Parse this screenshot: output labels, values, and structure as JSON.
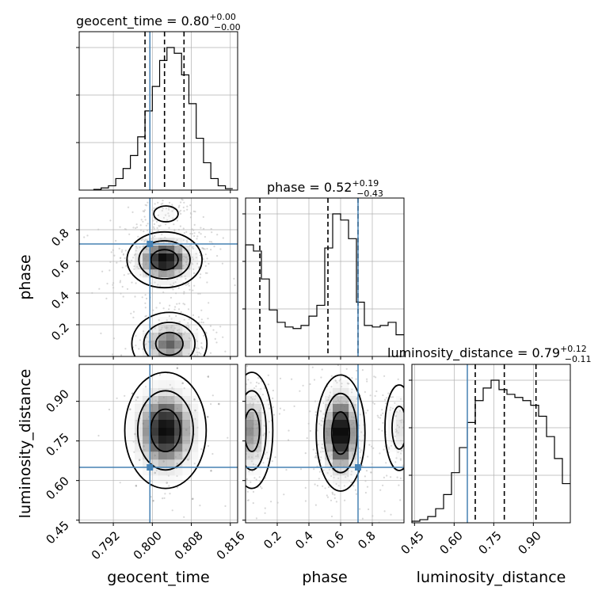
{
  "chart_data": [
    {
      "type": "histogram",
      "panel": "geocent_time-marginal",
      "title": "geocent_time",
      "title_value": "0.80",
      "title_plus": "+0.00",
      "title_minus": "−0.00",
      "x_range": [
        0.785,
        0.8175
      ],
      "bin_edges": [
        0.788,
        0.7895,
        0.791,
        0.7925,
        0.794,
        0.7955,
        0.797,
        0.7985,
        0.8,
        0.8015,
        0.803,
        0.8045,
        0.806,
        0.8075,
        0.809,
        0.8105,
        0.812,
        0.8135,
        0.815,
        0.8165
      ],
      "counts": [
        0.005,
        0.015,
        0.03,
        0.08,
        0.15,
        0.24,
        0.37,
        0.55,
        0.72,
        0.9,
        0.99,
        0.95,
        0.8,
        0.6,
        0.36,
        0.19,
        0.08,
        0.03,
        0.01
      ],
      "quantiles": [
        0.7985,
        0.8025,
        0.8065
      ],
      "truth": 0.7995
    },
    {
      "type": "histogram",
      "panel": "phase-marginal",
      "title": "phase",
      "title_value": "0.52",
      "title_plus": "+0.19",
      "title_minus": "−0.43",
      "x_range": [
        0.0,
        1.0
      ],
      "bin_edges": [
        0.0,
        0.05,
        0.1,
        0.15,
        0.2,
        0.25,
        0.3,
        0.35,
        0.4,
        0.45,
        0.5,
        0.55,
        0.6,
        0.65,
        0.7,
        0.75,
        0.8,
        0.85,
        0.9,
        0.95,
        1.0
      ],
      "counts": [
        0.72,
        0.68,
        0.5,
        0.3,
        0.22,
        0.19,
        0.18,
        0.2,
        0.26,
        0.33,
        0.7,
        0.92,
        0.88,
        0.76,
        0.35,
        0.2,
        0.19,
        0.2,
        0.22,
        0.14
      ],
      "quantiles": [
        0.09,
        0.52,
        0.71
      ],
      "truth": 0.71
    },
    {
      "type": "histogram",
      "panel": "luminosity_distance-marginal",
      "title": "luminosity_distance",
      "title_value": "0.79",
      "title_plus": "+0.12",
      "title_minus": "−0.11",
      "x_range": [
        0.44,
        1.04
      ],
      "bin_edges": [
        0.44,
        0.47,
        0.5,
        0.53,
        0.56,
        0.59,
        0.62,
        0.65,
        0.68,
        0.71,
        0.74,
        0.77,
        0.8,
        0.83,
        0.86,
        0.89,
        0.92,
        0.95,
        0.98,
        1.01,
        1.04
      ],
      "counts": [
        0.01,
        0.02,
        0.04,
        0.09,
        0.18,
        0.32,
        0.48,
        0.64,
        0.78,
        0.86,
        0.91,
        0.85,
        0.82,
        0.8,
        0.78,
        0.75,
        0.68,
        0.55,
        0.41,
        0.25
      ],
      "quantiles": [
        0.68,
        0.79,
        0.91
      ],
      "truth": 0.65
    },
    {
      "type": "heatmap",
      "panel": "phase-vs-geocent_time",
      "x_range": [
        0.785,
        0.8175
      ],
      "y_range": [
        0.0,
        1.0
      ],
      "modes": [
        {
          "x": 0.8025,
          "y": 0.61,
          "sx": 0.0035,
          "sy": 0.08,
          "weight": 1.0
        },
        {
          "x": 0.8035,
          "y": 0.08,
          "sx": 0.0035,
          "sy": 0.09,
          "weight": 0.7
        },
        {
          "x": 0.8028,
          "y": 0.9,
          "sx": 0.0025,
          "sy": 0.05,
          "weight": 0.2
        }
      ],
      "truth": {
        "x": 0.7995,
        "y": 0.71
      }
    },
    {
      "type": "heatmap",
      "panel": "luminosity_distance-vs-geocent_time",
      "x_range": [
        0.785,
        0.8175
      ],
      "y_range": [
        0.44,
        1.04
      ],
      "modes": [
        {
          "x": 0.8027,
          "y": 0.79,
          "sx": 0.0038,
          "sy": 0.1,
          "weight": 1.0
        }
      ],
      "truth": {
        "x": 0.7995,
        "y": 0.65
      }
    },
    {
      "type": "heatmap",
      "panel": "luminosity_distance-vs-phase",
      "x_range": [
        0.0,
        1.0
      ],
      "y_range": [
        0.44,
        1.04
      ],
      "modes": [
        {
          "x": 0.6,
          "y": 0.78,
          "sx": 0.07,
          "sy": 0.1,
          "weight": 1.0
        },
        {
          "x": 0.04,
          "y": 0.79,
          "sx": 0.06,
          "sy": 0.1,
          "weight": 0.6
        },
        {
          "x": 0.97,
          "y": 0.8,
          "sx": 0.05,
          "sy": 0.09,
          "weight": 0.3
        }
      ],
      "truth": {
        "x": 0.71,
        "y": 0.65
      }
    }
  ],
  "axes": {
    "x_labels": [
      "geocent_time",
      "phase",
      "luminosity_distance"
    ],
    "y_labels": [
      "phase",
      "luminosity_distance"
    ],
    "geocent_time_ticks": [
      "0.792",
      "0.800",
      "0.808",
      "0.816"
    ],
    "phase_ticks": [
      "0.2",
      "0.4",
      "0.6",
      "0.8"
    ],
    "luminosity_distance_ticks": [
      "0.45",
      "0.60",
      "0.75",
      "0.90"
    ],
    "phase_y_ticks": [
      "0.2",
      "0.4",
      "0.6",
      "0.8"
    ],
    "luminosity_distance_y_ticks": [
      "0.45",
      "0.60",
      "0.75",
      "0.90"
    ]
  },
  "colors": {
    "truth": "#4682b4",
    "hist": "#000000",
    "grid": "#b0b0b0",
    "density_dark": "#000000",
    "scatter": "#bdbdbd"
  }
}
